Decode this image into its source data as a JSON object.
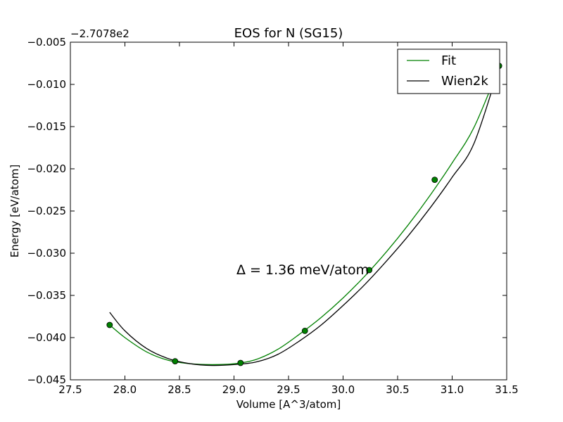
{
  "chart_data": {
    "type": "line",
    "title": "EOS for N (SG15)",
    "xlabel": "Volume [A^3/atom]",
    "ylabel": "Energy [eV/atom]",
    "y_offset_label": "−2.7078e2",
    "xlim": [
      27.5,
      31.5
    ],
    "ylim": [
      -0.045,
      -0.005
    ],
    "xticks": [
      27.5,
      28.0,
      28.5,
      29.0,
      29.5,
      30.0,
      30.5,
      31.0,
      31.5
    ],
    "xtick_labels": [
      "27.5",
      "28.0",
      "28.5",
      "29.0",
      "29.5",
      "30.0",
      "30.5",
      "31.0",
      "31.5"
    ],
    "yticks": [
      -0.045,
      -0.04,
      -0.035,
      -0.03,
      -0.025,
      -0.02,
      -0.015,
      -0.01,
      -0.005
    ],
    "ytick_labels": [
      "−0.045",
      "−0.040",
      "−0.035",
      "−0.030",
      "−0.025",
      "−0.020",
      "−0.015",
      "−0.010",
      "−0.005"
    ],
    "grid": false,
    "legend_position": "top-right",
    "annotation": "Δ = 1.36 meV/atom",
    "series": [
      {
        "name": "Fit",
        "color": "#008000",
        "kind": "curve",
        "x": [
          27.86,
          28.0,
          28.2,
          28.4,
          28.6,
          28.8,
          29.0,
          29.2,
          29.4,
          29.6,
          29.8,
          30.0,
          30.2,
          30.4,
          30.6,
          30.8,
          31.0,
          31.2,
          31.43
        ],
        "y": [
          -0.0385,
          -0.04,
          -0.0417,
          -0.0427,
          -0.0431,
          -0.0432,
          -0.0431,
          -0.0426,
          -0.0414,
          -0.0396,
          -0.0376,
          -0.0353,
          -0.0327,
          -0.0298,
          -0.0266,
          -0.0231,
          -0.0193,
          -0.0151,
          -0.008
        ]
      },
      {
        "name": "Wien2k",
        "color": "#000000",
        "kind": "curve",
        "x": [
          27.86,
          28.0,
          28.2,
          28.4,
          28.6,
          28.8,
          29.0,
          29.2,
          29.4,
          29.6,
          29.8,
          30.0,
          30.2,
          30.4,
          30.6,
          30.8,
          31.0,
          31.2,
          31.43
        ],
        "y": [
          -0.037,
          -0.0392,
          -0.0413,
          -0.0425,
          -0.0431,
          -0.0433,
          -0.0432,
          -0.0429,
          -0.042,
          -0.0404,
          -0.0385,
          -0.0362,
          -0.0337,
          -0.0309,
          -0.0279,
          -0.0246,
          -0.021,
          -0.017,
          -0.008
        ]
      },
      {
        "name": "",
        "color": "#008000",
        "kind": "points",
        "x": [
          27.86,
          28.46,
          29.06,
          29.65,
          30.24,
          30.84,
          31.43
        ],
        "y": [
          -0.0385,
          -0.0428,
          -0.043,
          -0.0392,
          -0.032,
          -0.0213,
          -0.0078
        ]
      }
    ]
  }
}
